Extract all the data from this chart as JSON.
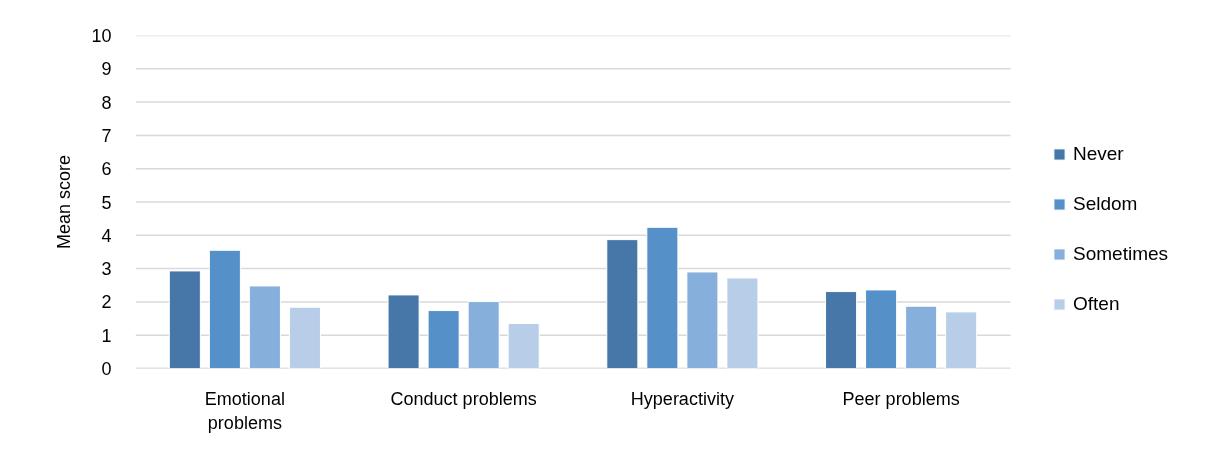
{
  "chart_data": {
    "type": "bar",
    "ylabel": "Mean score",
    "categories": [
      "Emotional problems",
      "Conduct problems",
      "Hyperactivity",
      "Peer problems"
    ],
    "series": [
      {
        "name": "Never",
        "color": "#4677a8",
        "values": [
          2.93,
          2.21,
          3.87,
          2.31
        ]
      },
      {
        "name": "Seldom",
        "color": "#5591c8",
        "values": [
          3.55,
          1.74,
          4.24,
          2.36
        ]
      },
      {
        "name": "Sometimes",
        "color": "#87afdc",
        "values": [
          2.48,
          2.01,
          2.9,
          1.87
        ]
      },
      {
        "name": "Often",
        "color": "#b8cde8",
        "values": [
          1.84,
          1.35,
          2.72,
          1.7
        ]
      }
    ],
    "ylim": [
      0,
      10
    ],
    "yticks": [
      0,
      1,
      2,
      3,
      4,
      5,
      6,
      7,
      8,
      9,
      10
    ],
    "grid": "y",
    "legend": "right"
  }
}
